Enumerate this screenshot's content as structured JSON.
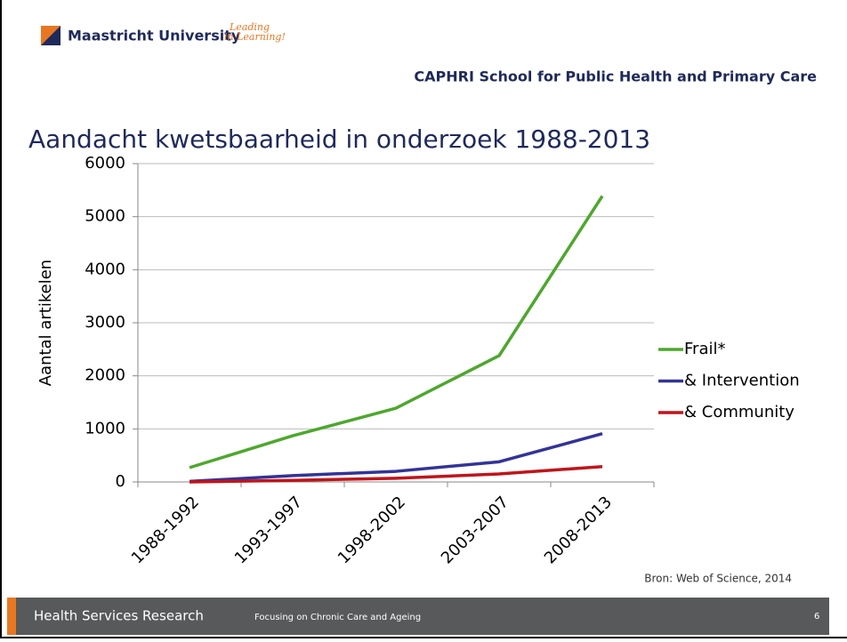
{
  "header": {
    "university": "Maastricht University",
    "motto_line1": "Leading",
    "motto_line2": "in Learning!",
    "school": "CAPHRI School for Public Health and Primary Care"
  },
  "chart_data": {
    "type": "line",
    "title": "Aandacht kwetsbaarheid in onderzoek 1988-2013",
    "y_label": "Aantal artikelen",
    "categories": [
      "1988-1992",
      "1993-1997",
      "1998-2002",
      "2003-2007",
      "2008-2013"
    ],
    "series": [
      {
        "name": "Frail*",
        "color": "#4ea72e",
        "values": [
          270,
          870,
          1390,
          2380,
          5390
        ]
      },
      {
        "name": "& Intervention",
        "color": "#333399",
        "values": [
          10,
          120,
          200,
          380,
          910
        ]
      },
      {
        "name": "& Community",
        "color": "#c0141b",
        "values": [
          0,
          30,
          70,
          150,
          290
        ]
      }
    ],
    "ylim": [
      0,
      6000
    ],
    "yticks": [
      0,
      1000,
      2000,
      3000,
      4000,
      5000,
      6000
    ],
    "grid": true,
    "legend": "right",
    "source": "Bron: Web of Science, 2014"
  },
  "footer": {
    "title": "Health Services Research",
    "subtitle": "Focusing on Chronic Care and Ageing",
    "page": "6"
  }
}
